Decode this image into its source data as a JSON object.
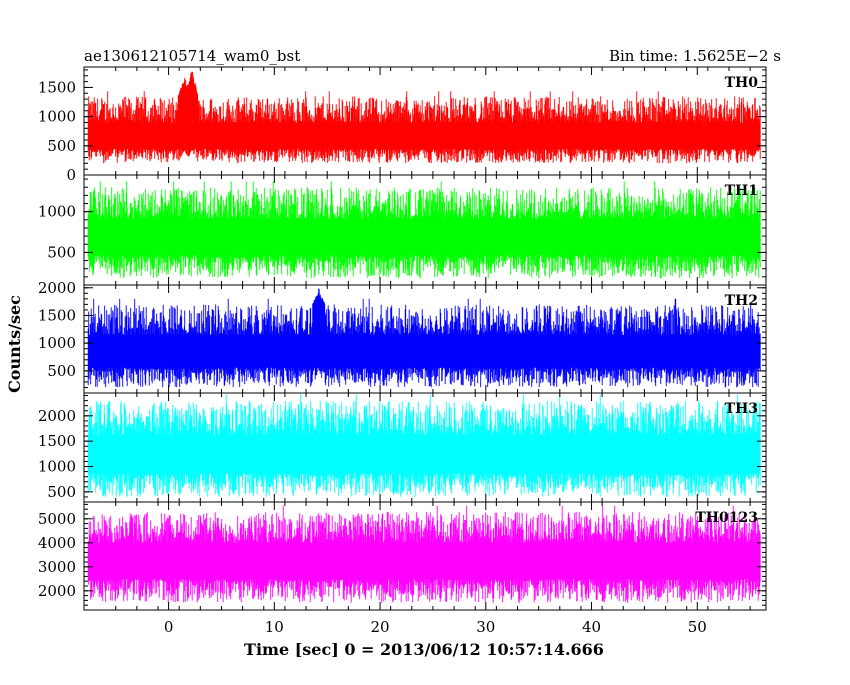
{
  "chart_data": {
    "type": "line",
    "title_left": "ae130612105714_wam0_bst",
    "title_right": "Bin time: 1.5625E−2 s",
    "xlabel": "Time [sec] 0 = 2013/06/12 10:57:14.666",
    "ylabel": "Counts/sec",
    "xlim": [
      -8,
      56.5
    ],
    "x_ticks": [
      0,
      10,
      20,
      30,
      40,
      50
    ],
    "x_tick_labels": [
      "0",
      "10",
      "20",
      "30",
      "40",
      "50"
    ],
    "data_x_range": [
      -7.6,
      56
    ],
    "panels": [
      {
        "name": "TH0",
        "color": "#ff0000",
        "ylim": [
          0,
          1850
        ],
        "y_ticks": [
          0,
          500,
          1000,
          1500
        ],
        "y_tick_labels": [
          "0",
          "500",
          "1000",
          "1500"
        ],
        "baseline": 650,
        "noise_low": 200,
        "noise_high": 1350,
        "features": [
          {
            "x": 2.2,
            "value": 1850
          },
          {
            "x": 1.5,
            "value": 1700
          }
        ]
      },
      {
        "name": "TH1",
        "color": "#00ff00",
        "ylim": [
          100,
          1450
        ],
        "y_ticks": [
          500,
          1000
        ],
        "y_tick_labels": [
          "500",
          "1000"
        ],
        "baseline": 700,
        "noise_low": 180,
        "noise_high": 1300,
        "features": []
      },
      {
        "name": "TH2",
        "color": "#0000ff",
        "ylim": [
          100,
          2050
        ],
        "y_ticks": [
          500,
          1000,
          1500,
          2000
        ],
        "y_tick_labels": [
          "500",
          "1000",
          "1500",
          "2000"
        ],
        "baseline": 850,
        "noise_low": 200,
        "noise_high": 1700,
        "features": [
          {
            "x": 14.2,
            "value": 2000
          }
        ]
      },
      {
        "name": "TH3",
        "color": "#00ffff",
        "ylim": [
          300,
          2450
        ],
        "y_ticks": [
          500,
          1000,
          1500,
          2000
        ],
        "y_tick_labels": [
          "500",
          "1000",
          "1500",
          "2000"
        ],
        "baseline": 1250,
        "noise_low": 400,
        "noise_high": 2300,
        "features": []
      },
      {
        "name": "TH0123",
        "color": "#ff00ff",
        "ylim": [
          1200,
          5700
        ],
        "y_ticks": [
          2000,
          3000,
          4000,
          5000
        ],
        "y_tick_labels": [
          "2000",
          "3000",
          "4000",
          "5000"
        ],
        "baseline": 3300,
        "noise_low": 1500,
        "noise_high": 5300,
        "features": []
      }
    ],
    "grid": false,
    "legend": "none"
  }
}
